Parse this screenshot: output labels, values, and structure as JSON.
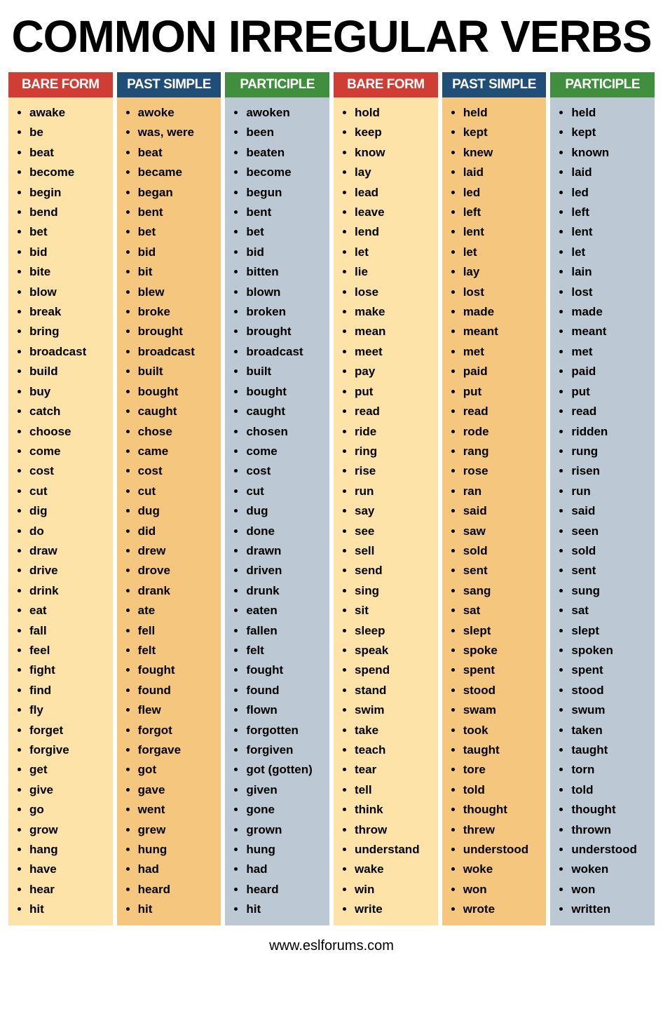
{
  "title": "COMMON IRREGULAR VERBS",
  "footer": "www.eslforums.com",
  "colors": {
    "header_red": "#cf3d34",
    "header_blue": "#1f4e79",
    "header_green": "#3f8f3f",
    "body_yellow": "#fde3a7",
    "body_orange": "#f5c77e",
    "body_bluegrey": "#bcc9d4"
  },
  "columns": [
    {
      "header": "BARE FORM",
      "header_bg": "#cf3d34",
      "body_bg": "#fde3a7",
      "items": [
        "awake",
        "be",
        "beat",
        "become",
        "begin",
        "bend",
        "bet",
        "bid",
        "bite",
        "blow",
        "break",
        "bring",
        "broadcast",
        "build",
        "buy",
        "catch",
        "choose",
        "come",
        "cost",
        "cut",
        "dig",
        "do",
        "draw",
        "drive",
        "drink",
        "eat",
        "fall",
        "feel",
        "fight",
        "find",
        "fly",
        "forget",
        "forgive",
        "get",
        "give",
        "go",
        "grow",
        "hang",
        "have",
        "hear",
        "hit"
      ]
    },
    {
      "header": "PAST SIMPLE",
      "header_bg": "#1f4e79",
      "body_bg": "#f5c77e",
      "items": [
        "awoke",
        "was, were",
        "beat",
        "became",
        "began",
        "bent",
        "bet",
        "bid",
        "bit",
        "blew",
        "broke",
        "brought",
        "broadcast",
        "built",
        "bought",
        "caught",
        "chose",
        "came",
        "cost",
        "cut",
        "dug",
        "did",
        "drew",
        "drove",
        "drank",
        "ate",
        "fell",
        "felt",
        "fought",
        "found",
        "flew",
        "forgot",
        "forgave",
        "got",
        "gave",
        "went",
        "grew",
        "hung",
        "had",
        "heard",
        "hit"
      ]
    },
    {
      "header": "PARTICIPLE",
      "header_bg": "#3f8f3f",
      "body_bg": "#bcc9d4",
      "items": [
        "awoken",
        "been",
        "beaten",
        "become",
        "begun",
        "bent",
        "bet",
        "bid",
        "bitten",
        "blown",
        "broken",
        "brought",
        "broadcast",
        "built",
        "bought",
        "caught",
        "chosen",
        "come",
        "cost",
        "cut",
        "dug",
        "done",
        "drawn",
        "driven",
        "drunk",
        "eaten",
        "fallen",
        "felt",
        "fought",
        "found",
        "flown",
        "forgotten",
        "forgiven",
        "got (gotten)",
        "given",
        "gone",
        "grown",
        "hung",
        "had",
        "heard",
        "hit"
      ]
    },
    {
      "header": "BARE FORM",
      "header_bg": "#cf3d34",
      "body_bg": "#fde3a7",
      "items": [
        "hold",
        "keep",
        "know",
        "lay",
        "lead",
        "leave",
        "lend",
        "let",
        "lie",
        "lose",
        "make",
        "mean",
        "meet",
        "pay",
        "put",
        "read",
        "ride",
        "ring",
        "rise",
        "run",
        "say",
        "see",
        "sell",
        "send",
        "sing",
        "sit",
        "sleep",
        "speak",
        "spend",
        "stand",
        "swim",
        "take",
        "teach",
        "tear",
        "tell",
        "think",
        "throw",
        "understand",
        "wake",
        "win",
        "write"
      ]
    },
    {
      "header": "PAST SIMPLE",
      "header_bg": "#1f4e79",
      "body_bg": "#f5c77e",
      "items": [
        "held",
        "kept",
        "knew",
        "laid",
        "led",
        "left",
        "lent",
        "let",
        "lay",
        "lost",
        "made",
        "meant",
        "met",
        "paid",
        "put",
        "read",
        "rode",
        "rang",
        "rose",
        "ran",
        "said",
        "saw",
        "sold",
        "sent",
        "sang",
        "sat",
        "slept",
        "spoke",
        "spent",
        "stood",
        "swam",
        "took",
        "taught",
        "tore",
        "told",
        "thought",
        "threw",
        "understood",
        "woke",
        "won",
        "wrote"
      ]
    },
    {
      "header": "PARTICIPLE",
      "header_bg": "#3f8f3f",
      "body_bg": "#bcc9d4",
      "items": [
        "held",
        "kept",
        "known",
        "laid",
        "led",
        "left",
        "lent",
        "let",
        "lain",
        "lost",
        "made",
        "meant",
        "met",
        "paid",
        "put",
        "read",
        "ridden",
        "rung",
        "risen",
        "run",
        "said",
        "seen",
        "sold",
        "sent",
        "sung",
        "sat",
        "slept",
        "spoken",
        "spent",
        "stood",
        "swum",
        "taken",
        "taught",
        "torn",
        "told",
        "thought",
        "thrown",
        "understood",
        "woken",
        "won",
        "written"
      ]
    }
  ]
}
